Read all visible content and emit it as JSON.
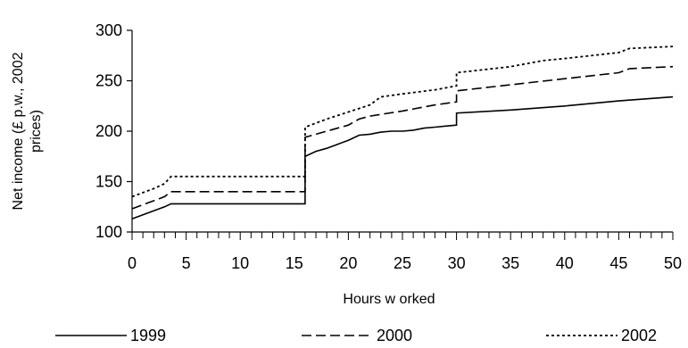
{
  "chart_data": {
    "type": "line",
    "xlabel": "Hours w orked",
    "ylabel": "Net income (£ p.w., 2002 prices)",
    "ylabel_lines": [
      "Net income (£ p.w., 2002",
      "prices)"
    ],
    "xlim": [
      0,
      50
    ],
    "ylim": [
      100,
      300
    ],
    "x_ticks": [
      0,
      5,
      10,
      15,
      20,
      25,
      30,
      35,
      40,
      45,
      50
    ],
    "y_ticks": [
      100,
      150,
      200,
      250,
      300
    ],
    "x_tick_labels": [
      "0",
      "5",
      "10",
      "15",
      "20",
      "25",
      "30",
      "35",
      "40",
      "45",
      "50"
    ],
    "y_tick_labels": [
      "100",
      "150",
      "200",
      "250",
      "300"
    ],
    "grid": false,
    "legend_position": "bottom",
    "series": [
      {
        "name": "1999",
        "style": "solid",
        "points": [
          [
            0,
            113
          ],
          [
            1,
            117
          ],
          [
            2,
            121
          ],
          [
            3,
            125
          ],
          [
            3.6,
            128
          ],
          [
            16,
            128
          ],
          [
            16,
            175
          ],
          [
            17,
            180
          ],
          [
            18,
            183
          ],
          [
            19,
            187
          ],
          [
            20,
            191
          ],
          [
            21,
            196
          ],
          [
            22,
            197
          ],
          [
            23,
            199
          ],
          [
            24,
            200
          ],
          [
            25,
            200
          ],
          [
            26,
            201
          ],
          [
            27,
            203
          ],
          [
            28,
            204
          ],
          [
            29,
            205
          ],
          [
            30,
            206
          ],
          [
            30,
            218
          ],
          [
            35,
            221
          ],
          [
            40,
            225
          ],
          [
            45,
            230
          ],
          [
            50,
            234
          ]
        ]
      },
      {
        "name": "2000",
        "style": "dashed",
        "points": [
          [
            0,
            123
          ],
          [
            1,
            127
          ],
          [
            2,
            131
          ],
          [
            3,
            135
          ],
          [
            3.6,
            140
          ],
          [
            16,
            140
          ],
          [
            16,
            194
          ],
          [
            18,
            200
          ],
          [
            20,
            206
          ],
          [
            21,
            212
          ],
          [
            22,
            215
          ],
          [
            25,
            220
          ],
          [
            28,
            226
          ],
          [
            30,
            229
          ],
          [
            30,
            240
          ],
          [
            35,
            246
          ],
          [
            40,
            252
          ],
          [
            45,
            258
          ],
          [
            46,
            262
          ],
          [
            50,
            264
          ]
        ]
      },
      {
        "name": "2002",
        "style": "dotted",
        "points": [
          [
            0,
            135
          ],
          [
            1,
            139
          ],
          [
            2,
            143
          ],
          [
            3,
            148
          ],
          [
            3.6,
            155
          ],
          [
            16,
            155
          ],
          [
            16,
            204
          ],
          [
            18,
            212
          ],
          [
            20,
            219
          ],
          [
            22,
            226
          ],
          [
            23,
            234
          ],
          [
            25,
            237
          ],
          [
            28,
            241
          ],
          [
            30,
            245
          ],
          [
            30,
            258
          ],
          [
            35,
            264
          ],
          [
            38,
            270
          ],
          [
            40,
            272
          ],
          [
            45,
            278
          ],
          [
            46,
            282
          ],
          [
            50,
            284
          ]
        ]
      }
    ]
  }
}
